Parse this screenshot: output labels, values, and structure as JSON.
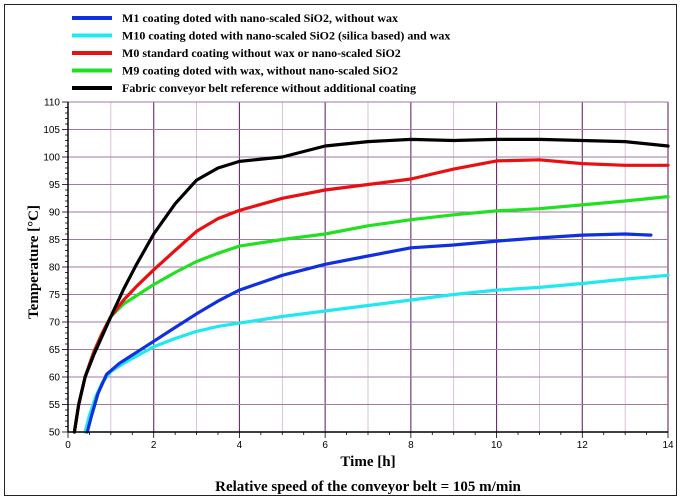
{
  "chart_data": {
    "type": "line",
    "xlabel": "Time [h]",
    "ylabel": "Temperature [°C]",
    "caption": "Relative speed of the conveyor belt = 105 m/min",
    "xlim": [
      0,
      14
    ],
    "ylim": [
      50,
      110
    ],
    "x_ticks": [
      0,
      2,
      4,
      6,
      8,
      10,
      12,
      14
    ],
    "y_ticks": [
      50,
      55,
      60,
      65,
      70,
      75,
      80,
      85,
      90,
      95,
      100,
      105,
      110
    ],
    "grid": true,
    "legend_position": "top",
    "series": [
      {
        "name": "M1 coating doted with nano-scaled SiO2, without wax",
        "color": "#1030e0",
        "x": [
          0.45,
          0.55,
          0.7,
          0.9,
          1.2,
          1.6,
          2,
          2.5,
          3,
          3.5,
          4,
          5,
          6,
          7,
          8,
          9,
          10,
          11,
          12,
          13,
          13.6
        ],
        "y": [
          50,
          53,
          57,
          60.5,
          62.5,
          64.5,
          66.5,
          69,
          71.5,
          73.8,
          75.8,
          78.5,
          80.5,
          82,
          83.5,
          84,
          84.7,
          85.3,
          85.8,
          86,
          85.8
        ]
      },
      {
        "name": "M10 coating doted with nano-scaled SiO2 (silica based) and wax",
        "color": "#20e8f0",
        "x": [
          0.4,
          0.5,
          0.65,
          0.8,
          1.0,
          1.3,
          1.6,
          2,
          2.5,
          3,
          3.5,
          4,
          5,
          6,
          7,
          8,
          9,
          10,
          11,
          12,
          13,
          14
        ],
        "y": [
          50,
          53,
          56.5,
          59,
          61,
          62.5,
          63.8,
          65.5,
          67,
          68.3,
          69.2,
          69.8,
          71,
          72,
          73,
          74,
          75,
          75.8,
          76.3,
          77,
          77.8,
          78.5
        ]
      },
      {
        "name": "M0 standard coating without wax or nano-scaled SiO2",
        "color": "#e81010",
        "x": [
          0.15,
          0.25,
          0.4,
          0.6,
          0.8,
          1.0,
          1.3,
          1.6,
          2,
          2.5,
          3,
          3.5,
          4,
          5,
          6,
          7,
          8,
          9,
          10,
          11,
          12,
          13,
          14
        ],
        "y": [
          50,
          55,
          60,
          64.5,
          68,
          71,
          74,
          76.5,
          79.5,
          83,
          86.5,
          88.8,
          90.3,
          92.5,
          94,
          95,
          96,
          97.8,
          99.3,
          99.5,
          98.8,
          98.5,
          98.5
        ]
      },
      {
        "name": "M9 coating doted with wax, without nano-scaled SiO2",
        "color": "#20e020",
        "x": [
          0.15,
          0.25,
          0.4,
          0.6,
          0.8,
          1.0,
          1.3,
          1.6,
          2,
          2.5,
          3,
          3.5,
          4,
          5,
          6,
          7,
          8,
          9,
          10,
          11,
          12,
          13,
          14
        ],
        "y": [
          50,
          55,
          60,
          64.5,
          68,
          71,
          73.3,
          74.8,
          76.8,
          79,
          81,
          82.5,
          83.8,
          85,
          86,
          87.5,
          88.6,
          89.5,
          90.2,
          90.6,
          91.3,
          92,
          92.8
        ]
      },
      {
        "name": "Fabric conveyor belt reference without additional coating",
        "color": "#000000",
        "x": [
          0.15,
          0.25,
          0.4,
          0.6,
          0.8,
          1.0,
          1.3,
          1.6,
          2,
          2.5,
          3,
          3.5,
          4,
          5,
          5.5,
          6,
          7,
          8,
          9,
          10,
          11,
          12,
          13,
          14
        ],
        "y": [
          50,
          55,
          60,
          64,
          67.5,
          71,
          76,
          80.5,
          86,
          91.5,
          95.8,
          98,
          99.2,
          100,
          101,
          102,
          102.8,
          103.2,
          103,
          103.2,
          103.2,
          103,
          102.8,
          102
        ]
      }
    ]
  }
}
